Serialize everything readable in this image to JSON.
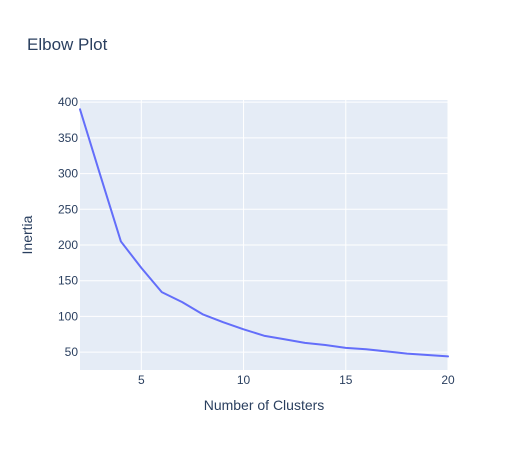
{
  "chart_data": {
    "type": "line",
    "title": "Elbow Plot",
    "xlabel": "Number of Clusters",
    "ylabel": "Inertia",
    "xlim": [
      2,
      20
    ],
    "ylim": [
      25,
      403
    ],
    "xticks": [
      5,
      10,
      15,
      20
    ],
    "yticks": [
      50,
      100,
      150,
      200,
      250,
      300,
      350,
      400
    ],
    "grid": true,
    "series": [
      {
        "x": [
          2,
          3,
          4,
          5,
          6,
          7,
          8,
          9,
          10,
          11,
          12,
          13,
          14,
          15,
          16,
          17,
          18,
          19,
          20
        ],
        "values": [
          390,
          297,
          205,
          168,
          134,
          120,
          103,
          92,
          82,
          73,
          68,
          63,
          60,
          56,
          54,
          51,
          48,
          46,
          44
        ]
      }
    ]
  },
  "colors": {
    "plot_background": "#E5ECF6",
    "grid": "#FFFFFF",
    "line": "#636EFA",
    "text": "#2A3F5F"
  }
}
